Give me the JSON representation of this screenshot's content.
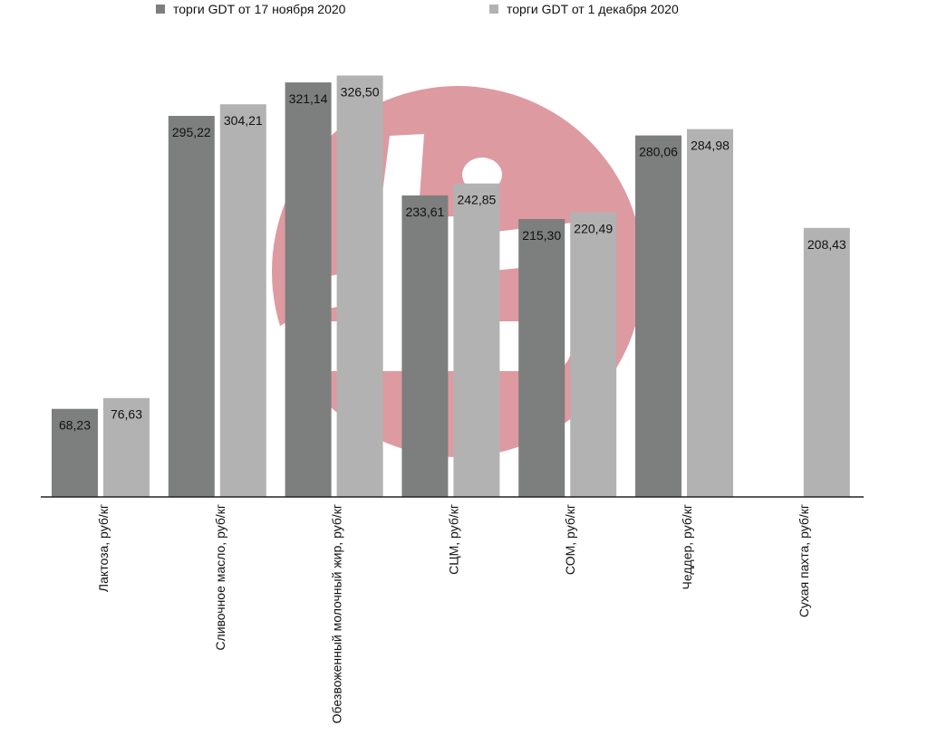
{
  "chart_data": {
    "type": "bar",
    "title": "",
    "xlabel": "",
    "ylabel": "",
    "ylim": [
      0,
      385
    ],
    "grid": false,
    "legend_position": "top",
    "categories": [
      "Лактоза, руб/кг",
      "Сливочное масло, руб/кг",
      "Обезвоженный молочный жир, руб/кг",
      "СЦМ, руб/кг",
      "СОМ, руб/кг",
      "Чеддер, руб/кг",
      "Сухая пахта, руб/кг"
    ],
    "series": [
      {
        "name": "торги GDT от 17 ноября 2020",
        "color": "#7c7f7d",
        "values": [
          68.23,
          295.22,
          321.14,
          233.61,
          215.3,
          280.06,
          null
        ],
        "labels": [
          "68,23",
          "295,22",
          "321,14",
          "233,61",
          "215,30",
          "280,06",
          null
        ]
      },
      {
        "name": "торги GDT от 1 декабря 2020",
        "color": "#b2b2b2",
        "values": [
          76.63,
          304.21,
          326.5,
          242.85,
          220.49,
          284.98,
          208.43
        ],
        "labels": [
          "76,63",
          "304,21",
          "326,50",
          "242,85",
          "220,49",
          "284,98",
          "208,43"
        ]
      }
    ]
  },
  "watermark": {
    "color": "#dd9aa0",
    "icon": "logo-watermark-icon"
  }
}
